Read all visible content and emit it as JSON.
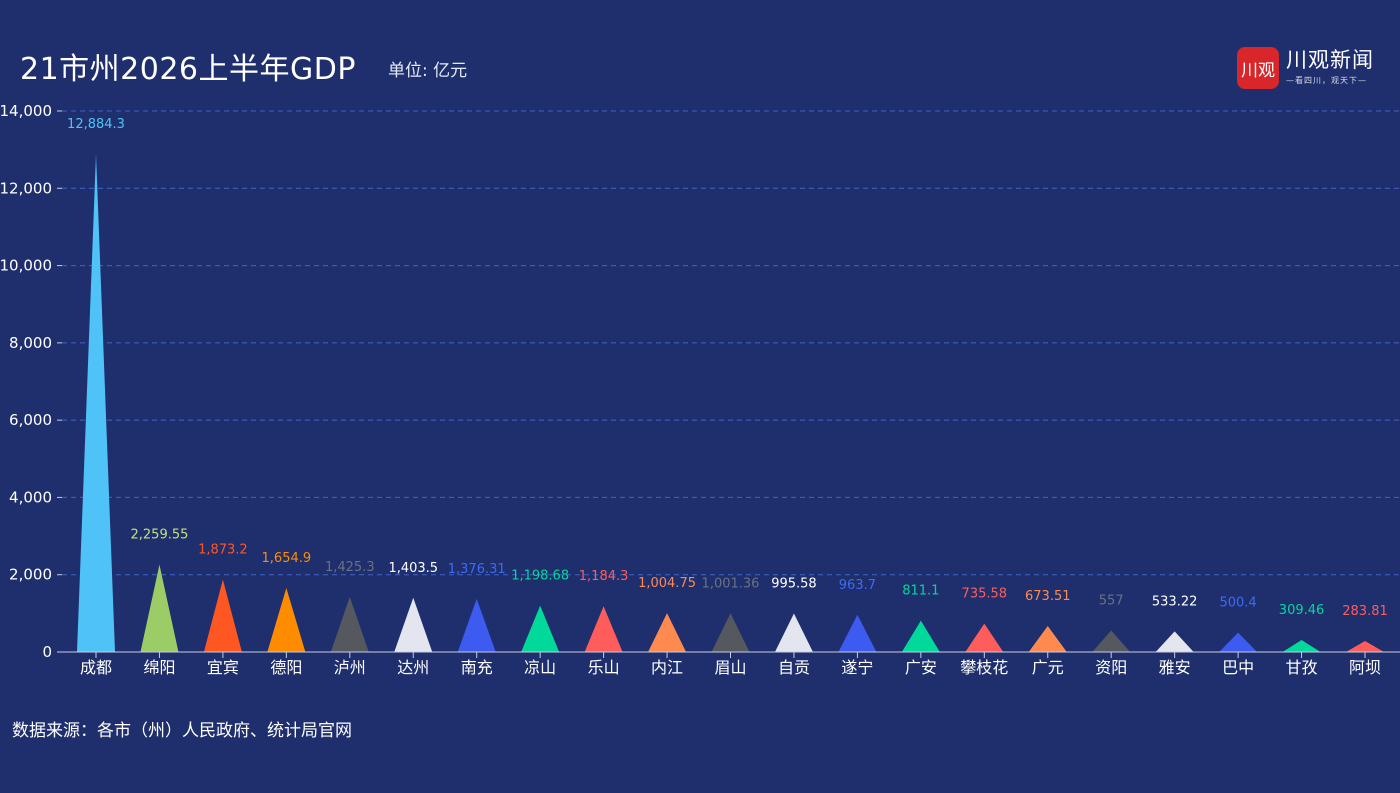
{
  "header": {
    "title": "21市州2026上半年GDP",
    "unit": "单位: 亿元"
  },
  "logo": {
    "mark": "川观",
    "name": "川观新闻",
    "slogan": "—看四川，观天下—"
  },
  "source": "数据来源：各市（州）人民政府、统计局官网",
  "chart_data": {
    "type": "bar",
    "shape": "triangle",
    "title": "21市州2026上半年GDP",
    "ylabel": "",
    "xlabel": "",
    "ylim": [
      0,
      14000
    ],
    "yticks": [
      0,
      2000,
      4000,
      6000,
      8000,
      10000,
      12000,
      14000
    ],
    "ytick_labels": [
      "0",
      "2,000",
      "4,000",
      "6,000",
      "8,000",
      "10,000",
      "12,000",
      "14,000"
    ],
    "grid": true,
    "categories": [
      "成都",
      "绵阳",
      "宜宾",
      "德阳",
      "泸州",
      "达州",
      "南充",
      "凉山",
      "乐山",
      "内江",
      "眉山",
      "自贡",
      "遂宁",
      "广安",
      "攀枝花",
      "广元",
      "资阳",
      "雅安",
      "巴中",
      "甘孜",
      "阿坝"
    ],
    "values": [
      12884.3,
      2259.55,
      1873.2,
      1654.9,
      1425.3,
      1403.5,
      1376.31,
      1198.68,
      1184.3,
      1004.75,
      1001.36,
      995.58,
      963.7,
      811.1,
      735.58,
      673.51,
      557,
      533.22,
      500.4,
      309.46,
      283.81
    ],
    "value_labels": [
      "12,884.3",
      "2,259.55",
      "1,873.2",
      "1,654.9",
      "1,425.3",
      "1,403.5",
      "1,376.31",
      "1,198.68",
      "1,184.3",
      "1,004.75",
      "1,001.36",
      "995.58",
      "963.7",
      "811.1",
      "735.58",
      "673.51",
      "557",
      "533.22",
      "500.4",
      "309.46",
      "283.81"
    ],
    "colors": [
      "#4fc3f7",
      "#9ccc65",
      "#ff5722",
      "#ff8c00",
      "#55585f",
      "#e3e6ef",
      "#3d5af1",
      "#00d99a",
      "#ff5c5c",
      "#ff8a50",
      "#55585f",
      "#e3e6ef",
      "#3d5af1",
      "#00d99a",
      "#ff5c5c",
      "#ff8a50",
      "#55585f",
      "#e3e6ef",
      "#3d5af1",
      "#00d99a",
      "#ff5c5c"
    ],
    "label_colors": [
      "#4fc3f7",
      "#c5e17a",
      "#ff5722",
      "#ff8c00",
      "#6b7080",
      "#ffffff",
      "#3d6af5",
      "#00d99a",
      "#ff5c5c",
      "#ff8a50",
      "#6b7080",
      "#ffffff",
      "#3d6af5",
      "#00d99a",
      "#ff5c5c",
      "#ff8a50",
      "#6b7080",
      "#ffffff",
      "#3d6af5",
      "#00d99a",
      "#ff5c5c"
    ],
    "axis_color": "#c8cde0",
    "grid_color": "#3f63c8"
  }
}
